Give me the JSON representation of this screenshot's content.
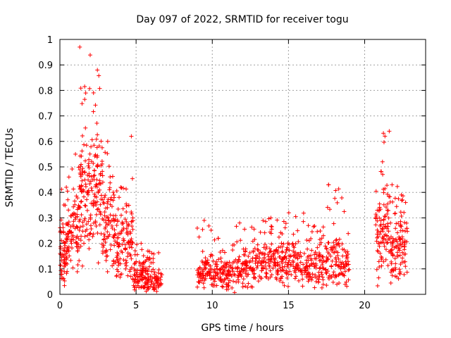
{
  "chart_data": {
    "type": "scatter",
    "title": "Day 097 of 2022, SRMTID for receiver togu",
    "xlabel": "GPS time / hours",
    "ylabel": "SRMTID / TECUs",
    "xlim": [
      0,
      24
    ],
    "ylim": [
      0,
      1
    ],
    "xticks": [
      0,
      5,
      10,
      15,
      20
    ],
    "yticks": [
      0,
      0.1,
      0.2,
      0.3,
      0.4,
      0.5,
      0.6,
      0.7,
      0.8,
      0.9,
      1
    ],
    "xtick_labels": [
      "0",
      "5",
      "10",
      "15",
      "20"
    ],
    "ytick_labels": [
      "0",
      "0.1",
      "0.2",
      "0.3",
      "0.4",
      "0.5",
      "0.6",
      "0.7",
      "0.8",
      "0.9",
      "1"
    ],
    "grid": true,
    "marker": "+",
    "color": "#ff0000",
    "clusters": [
      {
        "x_range": [
          0.0,
          0.5
        ],
        "typical_range": [
          0.0,
          0.32
        ],
        "peak": 0.42,
        "count": 70
      },
      {
        "x_range": [
          0.5,
          1.3
        ],
        "typical_range": [
          0.05,
          0.45
        ],
        "peak": 0.55,
        "count": 80
      },
      {
        "x_range": [
          1.3,
          2.0
        ],
        "typical_range": [
          0.1,
          0.7
        ],
        "peak": 0.97,
        "count": 90
      },
      {
        "x_range": [
          2.0,
          2.8
        ],
        "typical_range": [
          0.1,
          0.65
        ],
        "peak": 0.88,
        "count": 90
      },
      {
        "x_range": [
          2.8,
          3.5
        ],
        "typical_range": [
          0.05,
          0.5
        ],
        "peak": 0.6,
        "count": 70
      },
      {
        "x_range": [
          3.5,
          4.2
        ],
        "typical_range": [
          0.05,
          0.35
        ],
        "peak": 0.42,
        "count": 70
      },
      {
        "x_range": [
          4.2,
          4.8
        ],
        "typical_range": [
          0.02,
          0.4
        ],
        "peak": 0.62,
        "count": 60
      },
      {
        "x_range": [
          4.8,
          5.6
        ],
        "typical_range": [
          0.0,
          0.15
        ],
        "peak": 0.2,
        "count": 80
      },
      {
        "x_range": [
          5.6,
          6.7
        ],
        "typical_range": [
          0.0,
          0.12
        ],
        "peak": 0.17,
        "count": 90
      },
      {
        "x_range": [
          9.0,
          10.0
        ],
        "typical_range": [
          0.0,
          0.18
        ],
        "peak": 0.29,
        "count": 80
      },
      {
        "x_range": [
          10.0,
          11.5
        ],
        "typical_range": [
          0.0,
          0.15
        ],
        "peak": 0.22,
        "count": 110
      },
      {
        "x_range": [
          11.5,
          13.0
        ],
        "typical_range": [
          0.02,
          0.2
        ],
        "peak": 0.28,
        "count": 110
      },
      {
        "x_range": [
          13.0,
          14.5
        ],
        "typical_range": [
          0.03,
          0.22
        ],
        "peak": 0.3,
        "count": 110
      },
      {
        "x_range": [
          14.5,
          16.0
        ],
        "typical_range": [
          0.02,
          0.22
        ],
        "peak": 0.32,
        "count": 110
      },
      {
        "x_range": [
          16.0,
          17.5
        ],
        "typical_range": [
          0.02,
          0.2
        ],
        "peak": 0.27,
        "count": 110
      },
      {
        "x_range": [
          17.5,
          19.0
        ],
        "typical_range": [
          0.02,
          0.25
        ],
        "peak": 0.43,
        "count": 110
      },
      {
        "x_range": [
          20.7,
          21.2
        ],
        "typical_range": [
          0.02,
          0.45
        ],
        "peak": 0.52,
        "count": 50
      },
      {
        "x_range": [
          21.2,
          21.7
        ],
        "typical_range": [
          0.05,
          0.5
        ],
        "peak": 0.64,
        "count": 50
      },
      {
        "x_range": [
          21.7,
          22.2
        ],
        "typical_range": [
          0.02,
          0.3
        ],
        "peak": 0.43,
        "count": 50
      },
      {
        "x_range": [
          22.2,
          22.8
        ],
        "typical_range": [
          0.05,
          0.35
        ],
        "peak": 0.39,
        "count": 60
      }
    ]
  }
}
